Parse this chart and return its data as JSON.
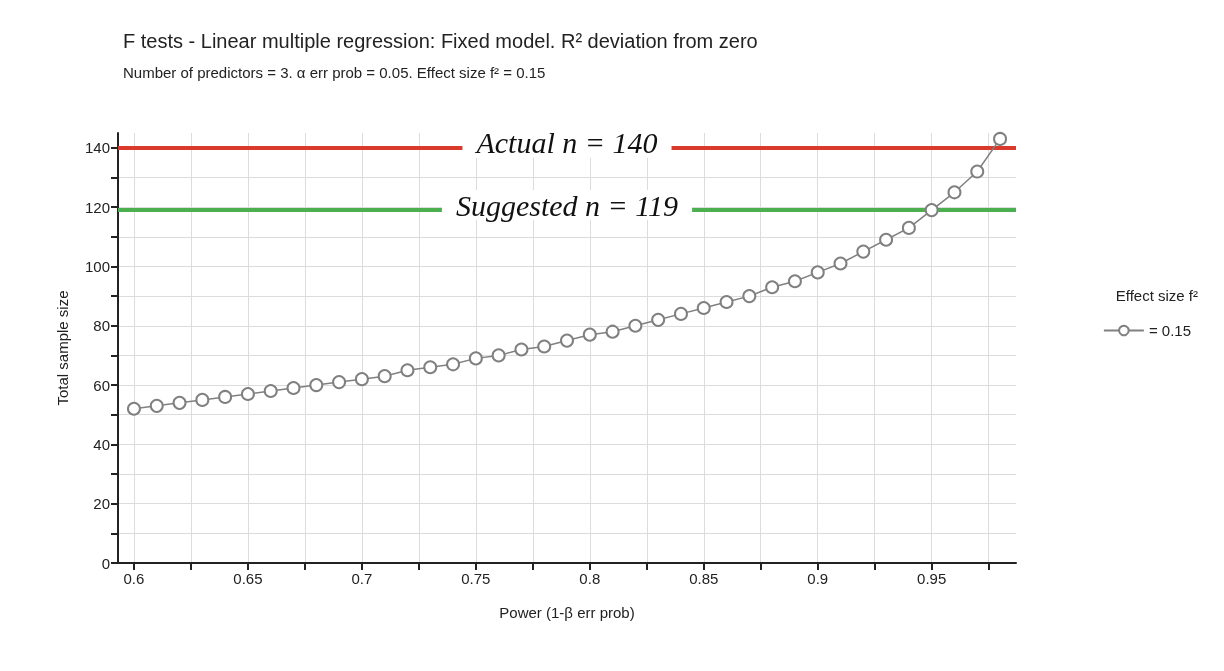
{
  "chart_data": {
    "type": "line",
    "title": "F tests - Linear multiple regression: Fixed model. R² deviation from zero",
    "subtitle": "Number of predictors = 3. α err prob = 0.05. Effect size f² = 0.15",
    "xlabel": "Power (1-β err prob)",
    "ylabel": "Total sample size",
    "legend_title": "Effect size f²",
    "x": [
      0.6,
      0.61,
      0.62,
      0.63,
      0.64,
      0.65,
      0.66,
      0.67,
      0.68,
      0.69,
      0.7,
      0.71,
      0.72,
      0.73,
      0.74,
      0.75,
      0.76,
      0.77,
      0.78,
      0.79,
      0.8,
      0.81,
      0.82,
      0.83,
      0.84,
      0.85,
      0.86,
      0.87,
      0.88,
      0.89,
      0.9,
      0.91,
      0.92,
      0.93,
      0.94,
      0.95,
      0.96,
      0.97,
      0.98
    ],
    "series": [
      {
        "name": "= 0.15",
        "color": "#808080",
        "values": [
          52,
          53,
          54,
          55,
          56,
          57,
          58,
          59,
          60,
          61,
          62,
          63,
          65,
          66,
          67,
          69,
          70,
          72,
          73,
          75,
          77,
          78,
          80,
          82,
          84,
          86,
          88,
          90,
          93,
          95,
          98,
          101,
          105,
          109,
          113,
          119,
          125,
          132,
          143
        ]
      }
    ],
    "xlim": [
      0.593,
      0.987
    ],
    "ylim": [
      0,
      145
    ],
    "xticks": [
      0.6,
      {
        "value": 0.625,
        "label": null
      },
      0.65,
      {
        "value": 0.675,
        "label": null
      },
      0.7,
      {
        "value": 0.725,
        "label": null
      },
      0.75,
      {
        "value": 0.775,
        "label": null
      },
      0.8,
      {
        "value": 0.825,
        "label": null
      },
      0.85,
      {
        "value": 0.875,
        "label": null
      },
      0.9,
      {
        "value": 0.925,
        "label": null
      },
      0.95,
      {
        "value": 0.975,
        "label": null
      }
    ],
    "yticks": [
      0,
      {
        "value": 10,
        "label": null
      },
      20,
      {
        "value": 30,
        "label": null
      },
      40,
      {
        "value": 50,
        "label": null
      },
      60,
      {
        "value": 70,
        "label": null
      },
      80,
      {
        "value": 90,
        "label": null
      },
      100,
      {
        "value": 110,
        "label": null
      },
      120,
      {
        "value": 130,
        "label": null
      },
      140
    ],
    "ref_lines": [
      {
        "axis": "y",
        "value": 140,
        "label": "Actual n = 140",
        "color": "#d93a2b"
      },
      {
        "axis": "y",
        "value": 119,
        "label": "Suggested n = 119",
        "color": "#4caf50"
      }
    ],
    "grid": true,
    "legend": "right",
    "marker": "circle",
    "line_style": "solid"
  }
}
